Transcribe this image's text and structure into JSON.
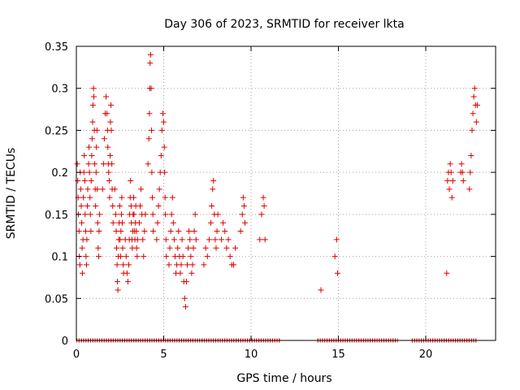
{
  "chart_data": {
    "type": "scatter",
    "title": "Day 306 of 2023, SRMTID for receiver lkta",
    "xlabel": "GPS time / hours",
    "ylabel": "SRMTID / TECUs",
    "xlim": [
      0,
      24
    ],
    "ylim": [
      0,
      0.35
    ],
    "xticks": [
      0,
      5,
      10,
      15,
      20
    ],
    "xtick_labels": [
      "0",
      "5",
      "10",
      "15",
      "20"
    ],
    "yticks": [
      0,
      0.05,
      0.1,
      0.15,
      0.2,
      0.25,
      0.3,
      0.35
    ],
    "ytick_labels": [
      "0",
      "0.05",
      "0.1",
      "0.15",
      "0.2",
      "0.25",
      "0.3",
      "0.35"
    ],
    "grid": true,
    "legend": "none",
    "marker": "plus",
    "color": "#dd0000",
    "series": [
      {
        "points": [
          [
            0.05,
            0.21
          ],
          [
            0.08,
            0.19
          ],
          [
            0.1,
            0.17
          ],
          [
            0.12,
            0.15
          ],
          [
            0.15,
            0.13
          ],
          [
            0.17,
            0.1
          ],
          [
            0.2,
            0.09
          ],
          [
            0.22,
            0.2
          ],
          [
            0.25,
            0.18
          ],
          [
            0.28,
            0.16
          ],
          [
            0.3,
            0.14
          ],
          [
            0.33,
            0.11
          ],
          [
            0.35,
            0.08
          ],
          [
            0.38,
            0.12
          ],
          [
            0.4,
            0.17
          ],
          [
            0.43,
            0.2
          ],
          [
            0.45,
            0.22
          ],
          [
            0.48,
            0.19
          ],
          [
            0.5,
            0.15
          ],
          [
            0.53,
            0.13
          ],
          [
            0.55,
            0.1
          ],
          [
            0.58,
            0.09
          ],
          [
            0.6,
            0.12
          ],
          [
            0.63,
            0.16
          ],
          [
            0.65,
            0.18
          ],
          [
            0.7,
            0.21
          ],
          [
            0.72,
            0.23
          ],
          [
            0.75,
            0.2
          ],
          [
            0.78,
            0.17
          ],
          [
            0.8,
            0.15
          ],
          [
            0.83,
            0.13
          ],
          [
            0.85,
            0.19
          ],
          [
            0.88,
            0.22
          ],
          [
            0.9,
            0.24
          ],
          [
            0.93,
            0.26
          ],
          [
            0.95,
            0.28
          ],
          [
            0.98,
            0.3
          ],
          [
            1.0,
            0.29
          ],
          [
            1.03,
            0.25
          ],
          [
            1.05,
            0.21
          ],
          [
            1.08,
            0.18
          ],
          [
            1.1,
            0.16
          ],
          [
            1.13,
            0.2
          ],
          [
            1.15,
            0.23
          ],
          [
            1.18,
            0.25
          ],
          [
            1.2,
            0.18
          ],
          [
            1.22,
            0.14
          ],
          [
            1.25,
            0.11
          ],
          [
            1.28,
            0.1
          ],
          [
            1.3,
            0.13
          ],
          [
            1.33,
            0.15
          ],
          [
            1.5,
            0.18
          ],
          [
            1.55,
            0.21
          ],
          [
            1.6,
            0.24
          ],
          [
            1.65,
            0.27
          ],
          [
            1.7,
            0.29
          ],
          [
            1.75,
            0.27
          ],
          [
            1.78,
            0.25
          ],
          [
            1.8,
            0.23
          ],
          [
            1.83,
            0.21
          ],
          [
            1.85,
            0.2
          ],
          [
            1.88,
            0.19
          ],
          [
            1.9,
            0.17
          ],
          [
            1.93,
            0.22
          ],
          [
            1.95,
            0.26
          ],
          [
            1.98,
            0.28
          ],
          [
            2.0,
            0.25
          ],
          [
            2.03,
            0.21
          ],
          [
            2.05,
            0.18
          ],
          [
            2.08,
            0.16
          ],
          [
            2.1,
            0.14
          ],
          [
            2.2,
            0.18
          ],
          [
            2.25,
            0.15
          ],
          [
            2.28,
            0.13
          ],
          [
            2.3,
            0.11
          ],
          [
            2.33,
            0.09
          ],
          [
            2.35,
            0.07
          ],
          [
            2.38,
            0.06
          ],
          [
            2.4,
            0.1
          ],
          [
            2.43,
            0.12
          ],
          [
            2.45,
            0.14
          ],
          [
            2.48,
            0.16
          ],
          [
            2.5,
            0.12
          ],
          [
            2.53,
            0.1
          ],
          [
            2.55,
            0.13
          ],
          [
            2.58,
            0.15
          ],
          [
            2.6,
            0.17
          ],
          [
            2.63,
            0.14
          ],
          [
            2.65,
            0.11
          ],
          [
            2.68,
            0.09
          ],
          [
            2.7,
            0.08
          ],
          [
            2.8,
            0.12
          ],
          [
            2.85,
            0.1
          ],
          [
            2.9,
            0.08
          ],
          [
            2.95,
            0.07
          ],
          [
            3.0,
            0.09
          ],
          [
            3.03,
            0.12
          ],
          [
            3.05,
            0.15
          ],
          [
            3.08,
            0.17
          ],
          [
            3.1,
            0.19
          ],
          [
            3.13,
            0.16
          ],
          [
            3.15,
            0.14
          ],
          [
            3.18,
            0.12
          ],
          [
            3.2,
            0.11
          ],
          [
            3.23,
            0.13
          ],
          [
            3.25,
            0.15
          ],
          [
            3.28,
            0.17
          ],
          [
            3.3,
            0.15
          ],
          [
            3.33,
            0.13
          ],
          [
            3.35,
            0.12
          ],
          [
            3.38,
            0.14
          ],
          [
            3.4,
            0.16
          ],
          [
            3.43,
            0.13
          ],
          [
            3.45,
            0.11
          ],
          [
            3.48,
            0.1
          ],
          [
            3.5,
            0.12
          ],
          [
            3.6,
            0.14
          ],
          [
            3.65,
            0.16
          ],
          [
            3.7,
            0.18
          ],
          [
            3.75,
            0.15
          ],
          [
            3.8,
            0.12
          ],
          [
            3.85,
            0.1
          ],
          [
            3.9,
            0.13
          ],
          [
            3.95,
            0.15
          ],
          [
            4.1,
            0.21
          ],
          [
            4.15,
            0.24
          ],
          [
            4.18,
            0.27
          ],
          [
            4.2,
            0.3
          ],
          [
            4.22,
            0.33
          ],
          [
            4.25,
            0.34
          ],
          [
            4.28,
            0.3
          ],
          [
            4.3,
            0.25
          ],
          [
            4.32,
            0.2
          ],
          [
            4.35,
            0.17
          ],
          [
            4.38,
            0.15
          ],
          [
            4.4,
            0.13
          ],
          [
            4.6,
            0.12
          ],
          [
            4.65,
            0.14
          ],
          [
            4.7,
            0.16
          ],
          [
            4.75,
            0.18
          ],
          [
            4.8,
            0.2
          ],
          [
            4.85,
            0.22
          ],
          [
            4.9,
            0.25
          ],
          [
            4.95,
            0.27
          ],
          [
            5.0,
            0.26
          ],
          [
            5.03,
            0.23
          ],
          [
            5.05,
            0.2
          ],
          [
            5.08,
            0.17
          ],
          [
            5.1,
            0.15
          ],
          [
            5.13,
            0.12
          ],
          [
            5.15,
            0.1
          ],
          [
            5.3,
            0.09
          ],
          [
            5.35,
            0.11
          ],
          [
            5.4,
            0.13
          ],
          [
            5.45,
            0.15
          ],
          [
            5.5,
            0.17
          ],
          [
            5.55,
            0.14
          ],
          [
            5.6,
            0.12
          ],
          [
            5.65,
            0.1
          ],
          [
            5.7,
            0.08
          ],
          [
            5.75,
            0.09
          ],
          [
            5.8,
            0.11
          ],
          [
            5.85,
            0.13
          ],
          [
            5.9,
            0.1
          ],
          [
            5.95,
            0.08
          ],
          [
            6.0,
            0.09
          ],
          [
            6.05,
            0.12
          ],
          [
            6.1,
            0.1
          ],
          [
            6.15,
            0.07
          ],
          [
            6.2,
            0.05
          ],
          [
            6.25,
            0.04
          ],
          [
            6.3,
            0.07
          ],
          [
            6.35,
            0.09
          ],
          [
            6.4,
            0.11
          ],
          [
            6.45,
            0.13
          ],
          [
            6.5,
            0.12
          ],
          [
            6.55,
            0.1
          ],
          [
            6.6,
            0.08
          ],
          [
            6.65,
            0.09
          ],
          [
            6.7,
            0.11
          ],
          [
            6.75,
            0.13
          ],
          [
            6.8,
            0.15
          ],
          [
            6.85,
            0.12
          ],
          [
            7.3,
            0.09
          ],
          [
            7.4,
            0.11
          ],
          [
            7.5,
            0.1
          ],
          [
            7.6,
            0.12
          ],
          [
            7.7,
            0.14
          ],
          [
            7.75,
            0.16
          ],
          [
            7.8,
            0.18
          ],
          [
            7.85,
            0.19
          ],
          [
            7.9,
            0.15
          ],
          [
            7.95,
            0.12
          ],
          [
            8.0,
            0.11
          ],
          [
            8.05,
            0.13
          ],
          [
            8.1,
            0.15
          ],
          [
            8.3,
            0.12
          ],
          [
            8.4,
            0.14
          ],
          [
            8.5,
            0.13
          ],
          [
            8.6,
            0.11
          ],
          [
            8.7,
            0.12
          ],
          [
            8.8,
            0.1
          ],
          [
            8.9,
            0.09
          ],
          [
            9.0,
            0.09
          ],
          [
            9.1,
            0.11
          ],
          [
            9.4,
            0.13
          ],
          [
            9.5,
            0.15
          ],
          [
            9.55,
            0.17
          ],
          [
            9.6,
            0.16
          ],
          [
            9.65,
            0.14
          ],
          [
            10.5,
            0.12
          ],
          [
            10.6,
            0.15
          ],
          [
            10.7,
            0.17
          ],
          [
            10.75,
            0.16
          ],
          [
            10.8,
            0.12
          ],
          [
            14.0,
            0.06
          ],
          [
            14.8,
            0.1
          ],
          [
            14.9,
            0.12
          ],
          [
            14.95,
            0.08
          ],
          [
            21.2,
            0.08
          ],
          [
            21.25,
            0.19
          ],
          [
            21.3,
            0.2
          ],
          [
            21.35,
            0.18
          ],
          [
            21.4,
            0.21
          ],
          [
            21.45,
            0.2
          ],
          [
            21.5,
            0.17
          ],
          [
            21.55,
            0.19
          ],
          [
            22.0,
            0.2
          ],
          [
            22.05,
            0.21
          ],
          [
            22.1,
            0.2
          ],
          [
            22.15,
            0.19
          ],
          [
            22.5,
            0.18
          ],
          [
            22.55,
            0.2
          ],
          [
            22.6,
            0.22
          ],
          [
            22.65,
            0.25
          ],
          [
            22.7,
            0.27
          ],
          [
            22.75,
            0.29
          ],
          [
            22.8,
            0.3
          ],
          [
            22.85,
            0.28
          ],
          [
            22.9,
            0.26
          ],
          [
            22.95,
            0.28
          ]
        ]
      }
    ],
    "zero_ranges": [
      [
        0.0,
        11.7
      ],
      [
        13.8,
        18.4
      ],
      [
        19.2,
        22.9
      ]
    ]
  }
}
